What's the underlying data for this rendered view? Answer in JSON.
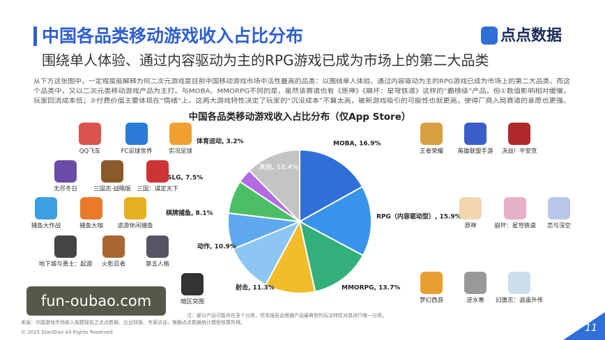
{
  "header": {
    "title": "中国各品类移动游戏收入占比分布",
    "subtitle": "围绕单人体验、通过内容驱动为主的RPG游戏已成为市场上的第二大品类",
    "logo": "点点数据"
  },
  "paragraph": [
    "从下方这张图中，一定程度能解释为何二次元游戏是目前中国移动游戏市场中活性最高的品类：以围绕单人体验、通过内容驱动为主的RPG游戏已成为市场上的第二大品类。而这",
    "个品类中，又以二次元类移动游戏产品为主打。与MOBA、MMORPG不同的是，虽然该赛道也有《原神》《崩坏：星穹铁道》这样的“霸榜级”产品，但①数值影响相对缓慢，",
    "玩家回流成本低；②付费价值主要体现在“情绪”上。这两大游戏特性决定了玩家的“沉没成本”不算太高，被新游戏吸引的可能性也就更高，使得厂商入局赛道的意愿也更强。"
  ],
  "chart_data": {
    "type": "pie",
    "title": "中国各品类移动游戏收入占比分布（仅App Store）",
    "values": [
      16.9,
      15.9,
      13.7,
      11.3,
      10.9,
      8.1,
      7.5,
      3.2,
      12.4
    ],
    "value_labels": [
      "MOBA, 16.9%",
      "RPG（内容驱动型）, 15.9%",
      "MMORPG, 13.7%",
      "射击, 11.3%",
      "动作, 10.9%",
      "棋牌捕鱼, 8.1%",
      "SLG, 7.5%",
      "体育运动, 3.2%",
      "其他, 12.4%"
    ],
    "colors": [
      "#2f6fd8",
      "#3a93ea",
      "#33b07a",
      "#f2bd2a",
      "#8cc6f2",
      "#5ea8ee",
      "#4cbf66",
      "#b36ae3",
      "#c4c4c4"
    ]
  },
  "games": {
    "left": [
      "QQ飞车",
      "FC足球世界",
      "实况足球",
      "无尽冬日",
      "三国志·战略版",
      "三国：谋定天下",
      "捕鱼大作战",
      "捕鱼大咖",
      "途游休闲捕鱼",
      "地下城与勇士：起源",
      "火影忍者",
      "第五人格",
      "暗区突围"
    ],
    "right": [
      "王者荣耀",
      "英雄联盟手游",
      "决战！平安京",
      "原神",
      "崩坏：星穹铁道",
      "恋与深空",
      "梦幻西游",
      "逆水寒",
      "幻唐志：逍遥外传"
    ]
  },
  "footer": {
    "note": "注：部分产品可能存在多个分类，但本报告会根据产品最典型的玩法特性对其进行唯一分类。",
    "source": "来源：中国游戏市场收入规模报告之点点数据、企业财报、专家访谈，根据点点数据统计模型核算所得。",
    "copyright": "© 2025 DianDian All Rights Reserved.",
    "page": "11"
  },
  "watermark": "fun-oubao.com"
}
